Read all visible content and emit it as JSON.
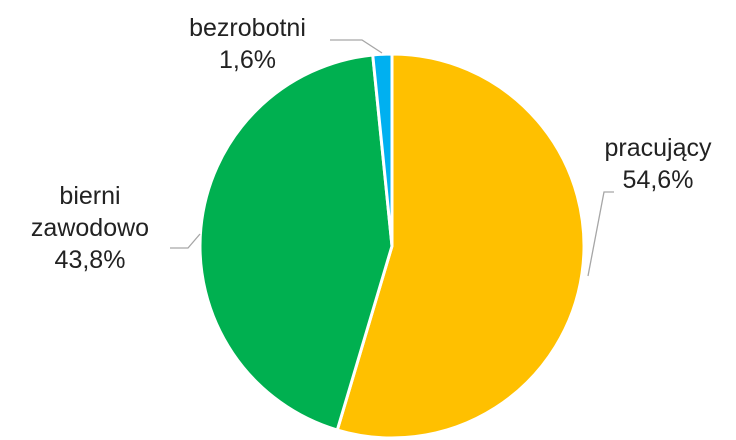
{
  "chart_data": {
    "type": "pie",
    "categories": [
      "pracujący",
      "bierni zawodowo",
      "bezrobotni"
    ],
    "values": [
      54.6,
      43.8,
      1.6
    ],
    "value_labels": [
      "54,6%",
      "43,8%",
      "1,6%"
    ],
    "colors": [
      "#FFC000",
      "#00B050",
      "#00B0F0"
    ]
  }
}
